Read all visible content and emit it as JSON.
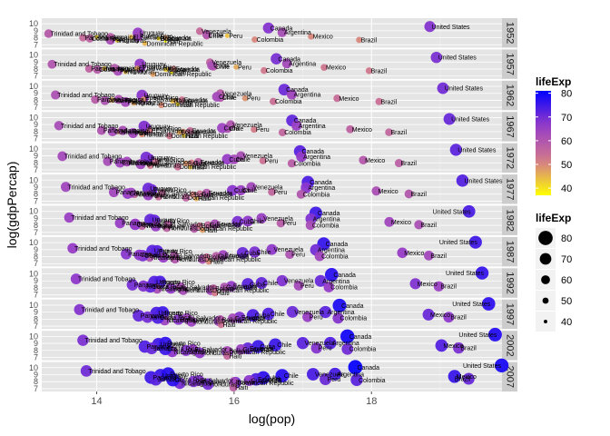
{
  "chart_data": {
    "type": "scatter",
    "facets": [
      "1952",
      "1957",
      "1962",
      "1967",
      "1972",
      "1977",
      "1982",
      "1987",
      "1992",
      "1997",
      "2002",
      "2007"
    ],
    "xlabel": "log(pop)",
    "ylabel": "log(gdpPercap)",
    "xlim": [
      13.2,
      19.9
    ],
    "ylim": [
      6.6,
      10.8
    ],
    "x_ticks": [
      14,
      16,
      18
    ],
    "y_ticks": [
      7,
      8,
      9,
      10
    ],
    "grid": true,
    "color_legend": {
      "title": "lifeExp",
      "breaks": [
        40,
        50,
        60,
        70,
        80
      ],
      "range": [
        37,
        81
      ],
      "low": "#FFFF00",
      "high": "#0000FF"
    },
    "size_legend": {
      "title": "lifeExp",
      "breaks": [
        80,
        70,
        60,
        50,
        40
      ]
    },
    "countries": [
      {
        "name": "United States",
        "pop0": 18.85,
        "popStep": 0.095,
        "gdp0": 9.6,
        "gdpStep": 0.065,
        "le0": 68,
        "leStep": 0.95
      },
      {
        "name": "Canada",
        "pop0": 16.5,
        "popStep": 0.115,
        "gdp0": 9.4,
        "gdpStep": 0.06,
        "le0": 68,
        "leStep": 1.1
      },
      {
        "name": "Mexico",
        "pop0": 17.12,
        "popStep": 0.19,
        "gdp0": 8.18,
        "gdpStep": 0.052,
        "le0": 50,
        "leStep": 2.3
      },
      {
        "name": "Brazil",
        "pop0": 17.82,
        "popStep": 0.145,
        "gdp0": 7.7,
        "gdpStep": 0.065,
        "le0": 50,
        "leStep": 1.9
      },
      {
        "name": "Argentina",
        "pop0": 16.7,
        "popStep": 0.07,
        "gdp0": 8.77,
        "gdpStep": 0.028,
        "le0": 62,
        "leStep": 1.1
      },
      {
        "name": "Colombia",
        "pop0": 16.3,
        "popStep": 0.135,
        "gdp0": 7.75,
        "gdpStep": 0.045,
        "le0": 50,
        "leStep": 2.0
      },
      {
        "name": "Venezuela",
        "pop0": 15.5,
        "popStep": 0.15,
        "gdp0": 8.95,
        "gdpStep": 0.01,
        "le0": 55,
        "leStep": 1.7
      },
      {
        "name": "Chile",
        "pop0": 15.6,
        "popStep": 0.1,
        "gdp0": 8.3,
        "gdpStep": 0.05,
        "le0": 55,
        "leStep": 2.0
      },
      {
        "name": "Peru",
        "pop0": 15.9,
        "popStep": 0.13,
        "gdp0": 8.28,
        "gdpStep": 0.005,
        "le0": 44,
        "leStep": 2.4
      },
      {
        "name": "Cuba",
        "pop0": 15.6,
        "popStep": 0.075,
        "gdp0": 8.5,
        "gdpStep": 0.005,
        "le0": 60,
        "leStep": 1.5
      },
      {
        "name": "Uruguay",
        "pop0": 14.6,
        "popStep": 0.03,
        "gdp0": 8.7,
        "gdpStep": 0.018,
        "le0": 66,
        "leStep": 0.85
      },
      {
        "name": "Puerto Rico",
        "pop0": 14.6,
        "popStep": 0.04,
        "gdp0": 8.2,
        "gdpStep": 0.08,
        "le0": 64,
        "leStep": 1.2
      },
      {
        "name": "Ecuador",
        "pop0": 15.0,
        "popStep": 0.12,
        "gdp0": 8.0,
        "gdpStep": 0.03,
        "le0": 48,
        "leStep": 2.3
      },
      {
        "name": "Guatemala",
        "pop0": 14.9,
        "popStep": 0.12,
        "gdp0": 7.9,
        "gdpStep": 0.025,
        "le0": 42,
        "leStep": 2.3
      },
      {
        "name": "Dominican Republic",
        "pop0": 14.7,
        "popStep": 0.12,
        "gdp0": 7.2,
        "gdpStep": 0.06,
        "le0": 45,
        "leStep": 2.3
      },
      {
        "name": "Panama",
        "pop0": 13.8,
        "popStep": 0.09,
        "gdp0": 8.0,
        "gdpStep": 0.055,
        "le0": 55,
        "leStep": 1.8
      },
      {
        "name": "Bolivia",
        "pop0": 14.9,
        "popStep": 0.1,
        "gdp0": 7.9,
        "gdpStep": 0.005,
        "le0": 40,
        "leStep": 2.1
      },
      {
        "name": "Haiti",
        "pop0": 15.0,
        "popStep": 0.09,
        "gdp0": 7.5,
        "gdpStep": -0.03,
        "le0": 37,
        "leStep": 1.8
      },
      {
        "name": "El Salvador",
        "pop0": 14.5,
        "popStep": 0.09,
        "gdp0": 8.1,
        "gdpStep": 0.005,
        "le0": 45,
        "leStep": 2.1
      },
      {
        "name": "Honduras",
        "pop0": 14.3,
        "popStep": 0.12,
        "gdp0": 7.6,
        "gdpStep": 0.005,
        "le0": 42,
        "leStep": 2.5
      },
      {
        "name": "Nicaragua",
        "pop0": 14.0,
        "popStep": 0.11,
        "gdp0": 8.1,
        "gdpStep": -0.03,
        "le0": 42,
        "leStep": 2.5
      },
      {
        "name": "Costa Rica",
        "pop0": 13.9,
        "popStep": 0.11,
        "gdp0": 7.9,
        "gdpStep": 0.035,
        "le0": 57,
        "leStep": 1.8
      },
      {
        "name": "Paraguay",
        "pop0": 14.2,
        "popStep": 0.11,
        "gdp0": 7.7,
        "gdpStep": 0.03,
        "le0": 62,
        "leStep": 0.6
      },
      {
        "name": "Jamaica",
        "pop0": 14.2,
        "popStep": 0.06,
        "gdp0": 8.1,
        "gdpStep": 0.02,
        "le0": 58,
        "leStep": 1.3
      },
      {
        "name": "Trinidad and Tobago",
        "pop0": 13.3,
        "popStep": 0.05,
        "gdp0": 8.6,
        "gdpStep": 0.085,
        "le0": 59,
        "leStep": 1.0
      }
    ]
  }
}
